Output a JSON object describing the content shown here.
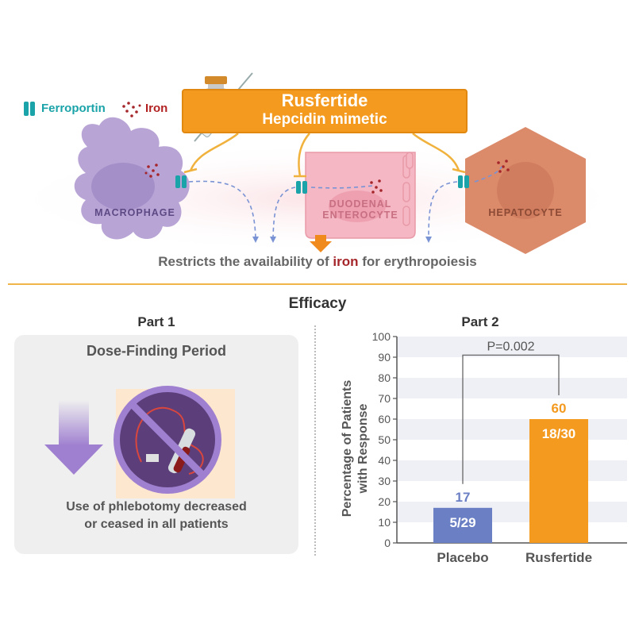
{
  "legend": {
    "ferroportin": "Ferroportin",
    "iron": "Iron"
  },
  "drug": {
    "name": "Rusfertide",
    "subtitle": "Hepcidin mimetic"
  },
  "cells": {
    "macrophage": "MACROPHAGE",
    "enterocyte_line1": "DUODENAL",
    "enterocyte_line2": "ENTEROCYTE",
    "hepatocyte": "HEPATOCYTE"
  },
  "restrict_text": {
    "before": "Restricts the availability of ",
    "highlight": "iron",
    "after": " for erythropoiesis"
  },
  "efficacy_title": "Efficacy",
  "part1": {
    "title": "Part 1",
    "period": "Dose-Finding Period",
    "result_line1": "Use of phlebotomy decreased",
    "result_line2": "or ceased in all patients"
  },
  "part2": {
    "title": "Part 2"
  },
  "colors": {
    "placebo": "#6b80c4",
    "rusfertide": "#f39a1f",
    "drug_box": "#f39a1f",
    "ferroportin": "#1aa3a8",
    "iron": "#a5262a"
  },
  "chart_data": {
    "type": "bar",
    "categories": [
      "Placebo",
      "Rusfertide"
    ],
    "values": [
      17,
      60
    ],
    "value_labels": [
      "17",
      "60"
    ],
    "fraction_labels": [
      "5/29",
      "18/30"
    ],
    "ylabel_line1": "Percentage of Patients",
    "ylabel_line2": "with Response",
    "ylim": [
      0,
      100
    ],
    "yticks": [
      0,
      10,
      20,
      30,
      40,
      50,
      60,
      70,
      80,
      90,
      100
    ],
    "annotation": "P=0.002",
    "grid": "alternating-bands"
  }
}
